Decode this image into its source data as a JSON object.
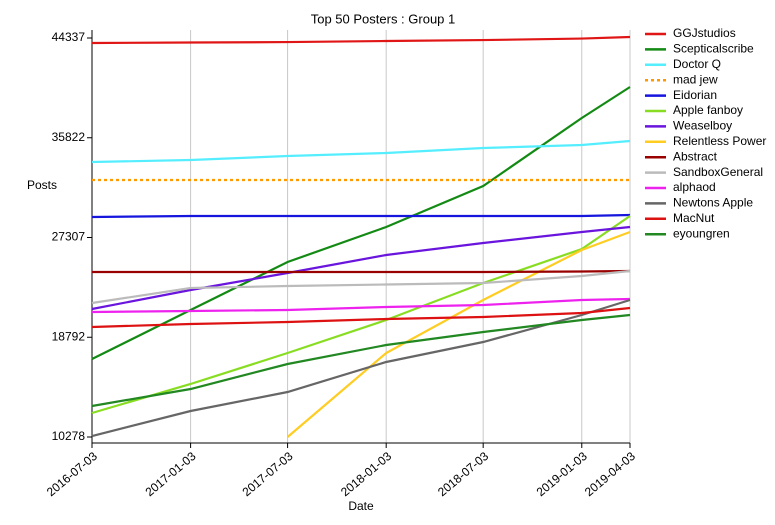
{
  "chart_data": {
    "type": "line",
    "title": "Top 50 Posters : Group 1",
    "x_label": "Date",
    "y_label": "Posts",
    "x": [
      "2016-07-03",
      "2017-01-03",
      "2017-07-03",
      "2018-01-03",
      "2018-07-03",
      "2019-01-03",
      "2019-04-03"
    ],
    "ylim": [
      10278,
      44337
    ],
    "yticks": [
      10278,
      18792,
      27307,
      35822,
      44337
    ],
    "grid": true,
    "legend": "right",
    "series": [
      {
        "name": "GGJstudios",
        "color": "#e01515",
        "values": [
          43910,
          43950,
          43990,
          44080,
          44160,
          44290,
          44420
        ]
      },
      {
        "name": "Scepticalscribe",
        "color": "#138a13",
        "values": [
          16936,
          21120,
          25216,
          28204,
          31703,
          37508,
          40154
        ]
      },
      {
        "name": "Doctor Q",
        "color": "#55eeff",
        "values": [
          33752,
          33923,
          34264,
          34520,
          34947,
          35203,
          35545
        ]
      },
      {
        "name": "mad jew",
        "color": "#ff9900",
        "style": "dotted",
        "values": [
          32216,
          32216,
          32216,
          32216,
          32216,
          32216,
          32216
        ]
      },
      {
        "name": "Eidorian",
        "color": "#1515dd",
        "values": [
          29057,
          29143,
          29143,
          29143,
          29143,
          29143,
          29228
        ]
      },
      {
        "name": "Apple fanboy",
        "color": "#88dd22",
        "values": [
          12327,
          14803,
          17448,
          20265,
          23423,
          26325,
          29143
        ]
      },
      {
        "name": "Weaselboy",
        "color": "#6a15dd",
        "values": [
          21204,
          22826,
          24277,
          25814,
          26838,
          27777,
          28204
        ]
      },
      {
        "name": "Relentless Power",
        "color": "#ffcc22",
        "values": [
          null,
          null,
          10278,
          17448,
          21972,
          26240,
          27777
        ]
      },
      {
        "name": "Abstract",
        "color": "#990000",
        "values": [
          24362,
          24362,
          24362,
          24362,
          24362,
          24405,
          24448
        ]
      },
      {
        "name": "SandboxGeneral",
        "color": "#bbbbbb",
        "values": [
          21716,
          22997,
          23168,
          23296,
          23423,
          24020,
          24448
        ]
      },
      {
        "name": "alphaod",
        "color": "#ee22ee",
        "values": [
          20948,
          21033,
          21119,
          21375,
          21545,
          21972,
          22058
        ]
      },
      {
        "name": "Newtons Apple",
        "color": "#666666",
        "values": [
          10363,
          12497,
          14119,
          16680,
          18387,
          20692,
          21972
        ]
      },
      {
        "name": "MacNut",
        "color": "#dd1111",
        "values": [
          19668,
          19924,
          20094,
          20350,
          20521,
          20863,
          21290
        ]
      },
      {
        "name": "eyoungren",
        "color": "#228822",
        "values": [
          12924,
          14375,
          16509,
          18131,
          19241,
          20265,
          20692
        ]
      }
    ]
  }
}
